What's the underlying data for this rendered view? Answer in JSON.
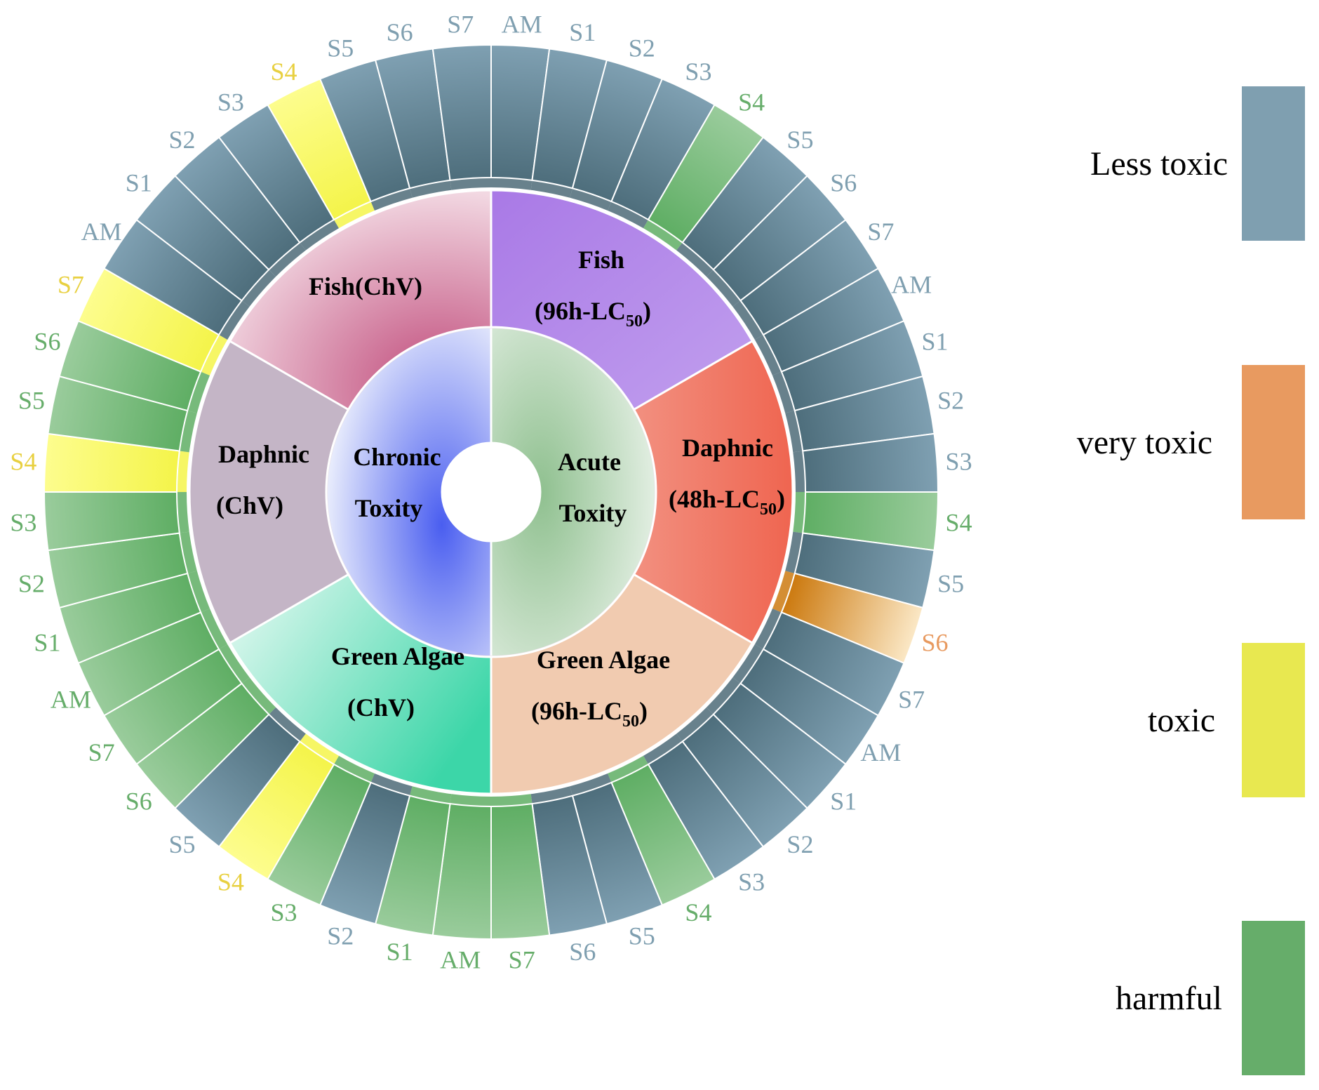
{
  "chart_data": {
    "type": "sunburst",
    "center": {
      "chronic_label_1": "Chronic",
      "chronic_label_2": "Toxity",
      "acute_label_1": "Acute",
      "acute_label_2": "Toxity"
    },
    "categories": {
      "fish_acute": {
        "line1": "Fish",
        "line2": "(96h-LC",
        "sub": "50",
        "close": ")"
      },
      "daphnic_acute": {
        "line1": "Daphnic",
        "line2": "(48h-LC",
        "sub": "50",
        "close": ")"
      },
      "algae_acute": {
        "line1": "Green Algae",
        "line2": "(96h-LC",
        "sub": "50",
        "close": ")"
      },
      "algae_chronic": {
        "line1": "Green Algae",
        "line2": "(ChV)"
      },
      "daphnic_chronic": {
        "line1": "Daphnic",
        "line2": "(ChV)"
      },
      "fish_chronic": {
        "line1": "Fish(ChV)"
      }
    },
    "compounds": [
      "AM",
      "S1",
      "S2",
      "S3",
      "S4",
      "S5",
      "S6",
      "S7"
    ],
    "toxicity": {
      "fish_acute": [
        "less",
        "less",
        "less",
        "less",
        "harmful",
        "less",
        "less",
        "less"
      ],
      "daphnic_acute": [
        "less",
        "less",
        "less",
        "less",
        "harmful",
        "less",
        "very",
        "less"
      ],
      "algae_acute": [
        "less",
        "less",
        "less",
        "less",
        "harmful",
        "less",
        "less",
        "harmful"
      ],
      "algae_chronic": [
        "harmful",
        "harmful",
        "less",
        "harmful",
        "toxic",
        "less",
        "harmful",
        "harmful"
      ],
      "daphnic_chronic": [
        "harmful",
        "harmful",
        "harmful",
        "harmful",
        "toxic",
        "harmful",
        "harmful",
        "toxic"
      ],
      "fish_chronic": [
        "less",
        "less",
        "less",
        "less",
        "toxic",
        "less",
        "less",
        "less"
      ]
    },
    "legend": [
      {
        "key": "less",
        "label": "Less toxic",
        "color": "#7f9fb0"
      },
      {
        "key": "very",
        "label": "very toxic",
        "color": "#e89a60"
      },
      {
        "key": "toxic",
        "label": "toxic",
        "color": "#e8e850"
      },
      {
        "key": "harmful",
        "label": "harmful",
        "color": "#66ad6a"
      }
    ]
  }
}
